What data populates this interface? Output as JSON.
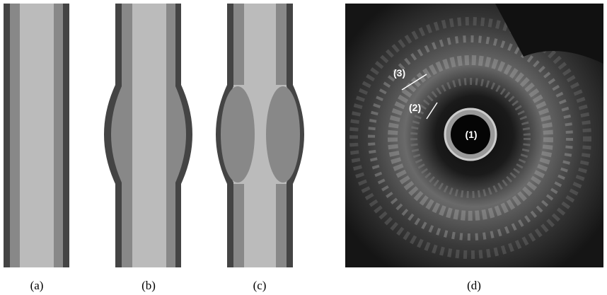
{
  "panels": [
    {
      "label": "(a)"
    },
    {
      "label": "(b)"
    },
    {
      "label": "(c)"
    },
    {
      "label": "(d)",
      "annotations": [
        "(1)",
        "(2)",
        "(3)"
      ]
    }
  ]
}
